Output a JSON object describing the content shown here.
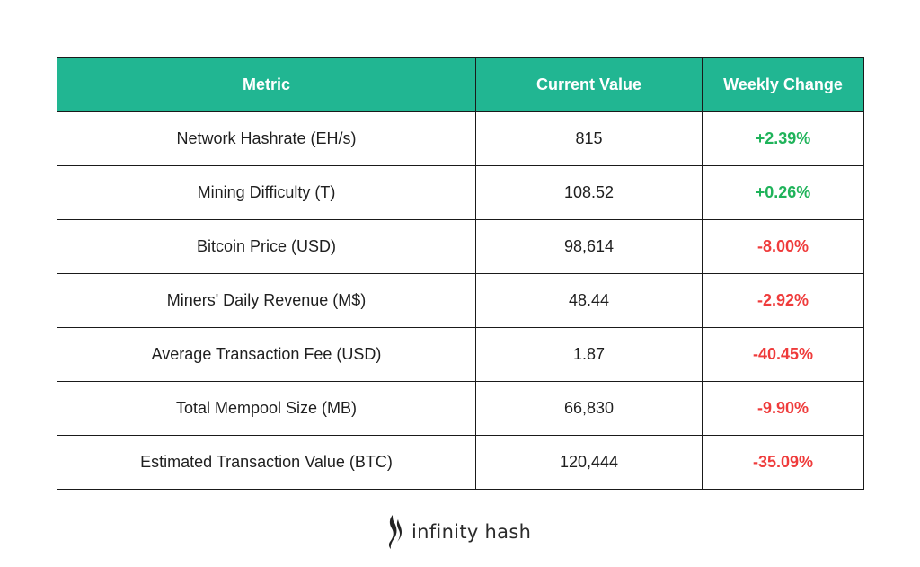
{
  "table": {
    "headers": {
      "metric": "Metric",
      "value": "Current Value",
      "change": "Weekly Change"
    },
    "rows": [
      {
        "metric": "Network Hashrate (EH/s)",
        "value": "815",
        "change": "+2.39%",
        "direction": "up"
      },
      {
        "metric": "Mining Difficulty (T)",
        "value": "108.52",
        "change": "+0.26%",
        "direction": "up"
      },
      {
        "metric": "Bitcoin Price (USD)",
        "value": "98,614",
        "change": "-8.00%",
        "direction": "down"
      },
      {
        "metric": "Miners' Daily Revenue (M$)",
        "value": "48.44",
        "change": "-2.92%",
        "direction": "down"
      },
      {
        "metric": "Average Transaction Fee (USD)",
        "value": "1.87",
        "change": "-40.45%",
        "direction": "down"
      },
      {
        "metric": "Total Mempool Size (MB)",
        "value": "66,830",
        "change": "-9.90%",
        "direction": "down"
      },
      {
        "metric": "Estimated Transaction Value (BTC)",
        "value": "120,444",
        "change": "-35.09%",
        "direction": "down"
      }
    ]
  },
  "brand": {
    "name": "infinity hash",
    "logo_icon": "flame-icon"
  },
  "colors": {
    "header_bg": "#21b692",
    "positive": "#1fb35a",
    "negative": "#ef3b3b"
  }
}
